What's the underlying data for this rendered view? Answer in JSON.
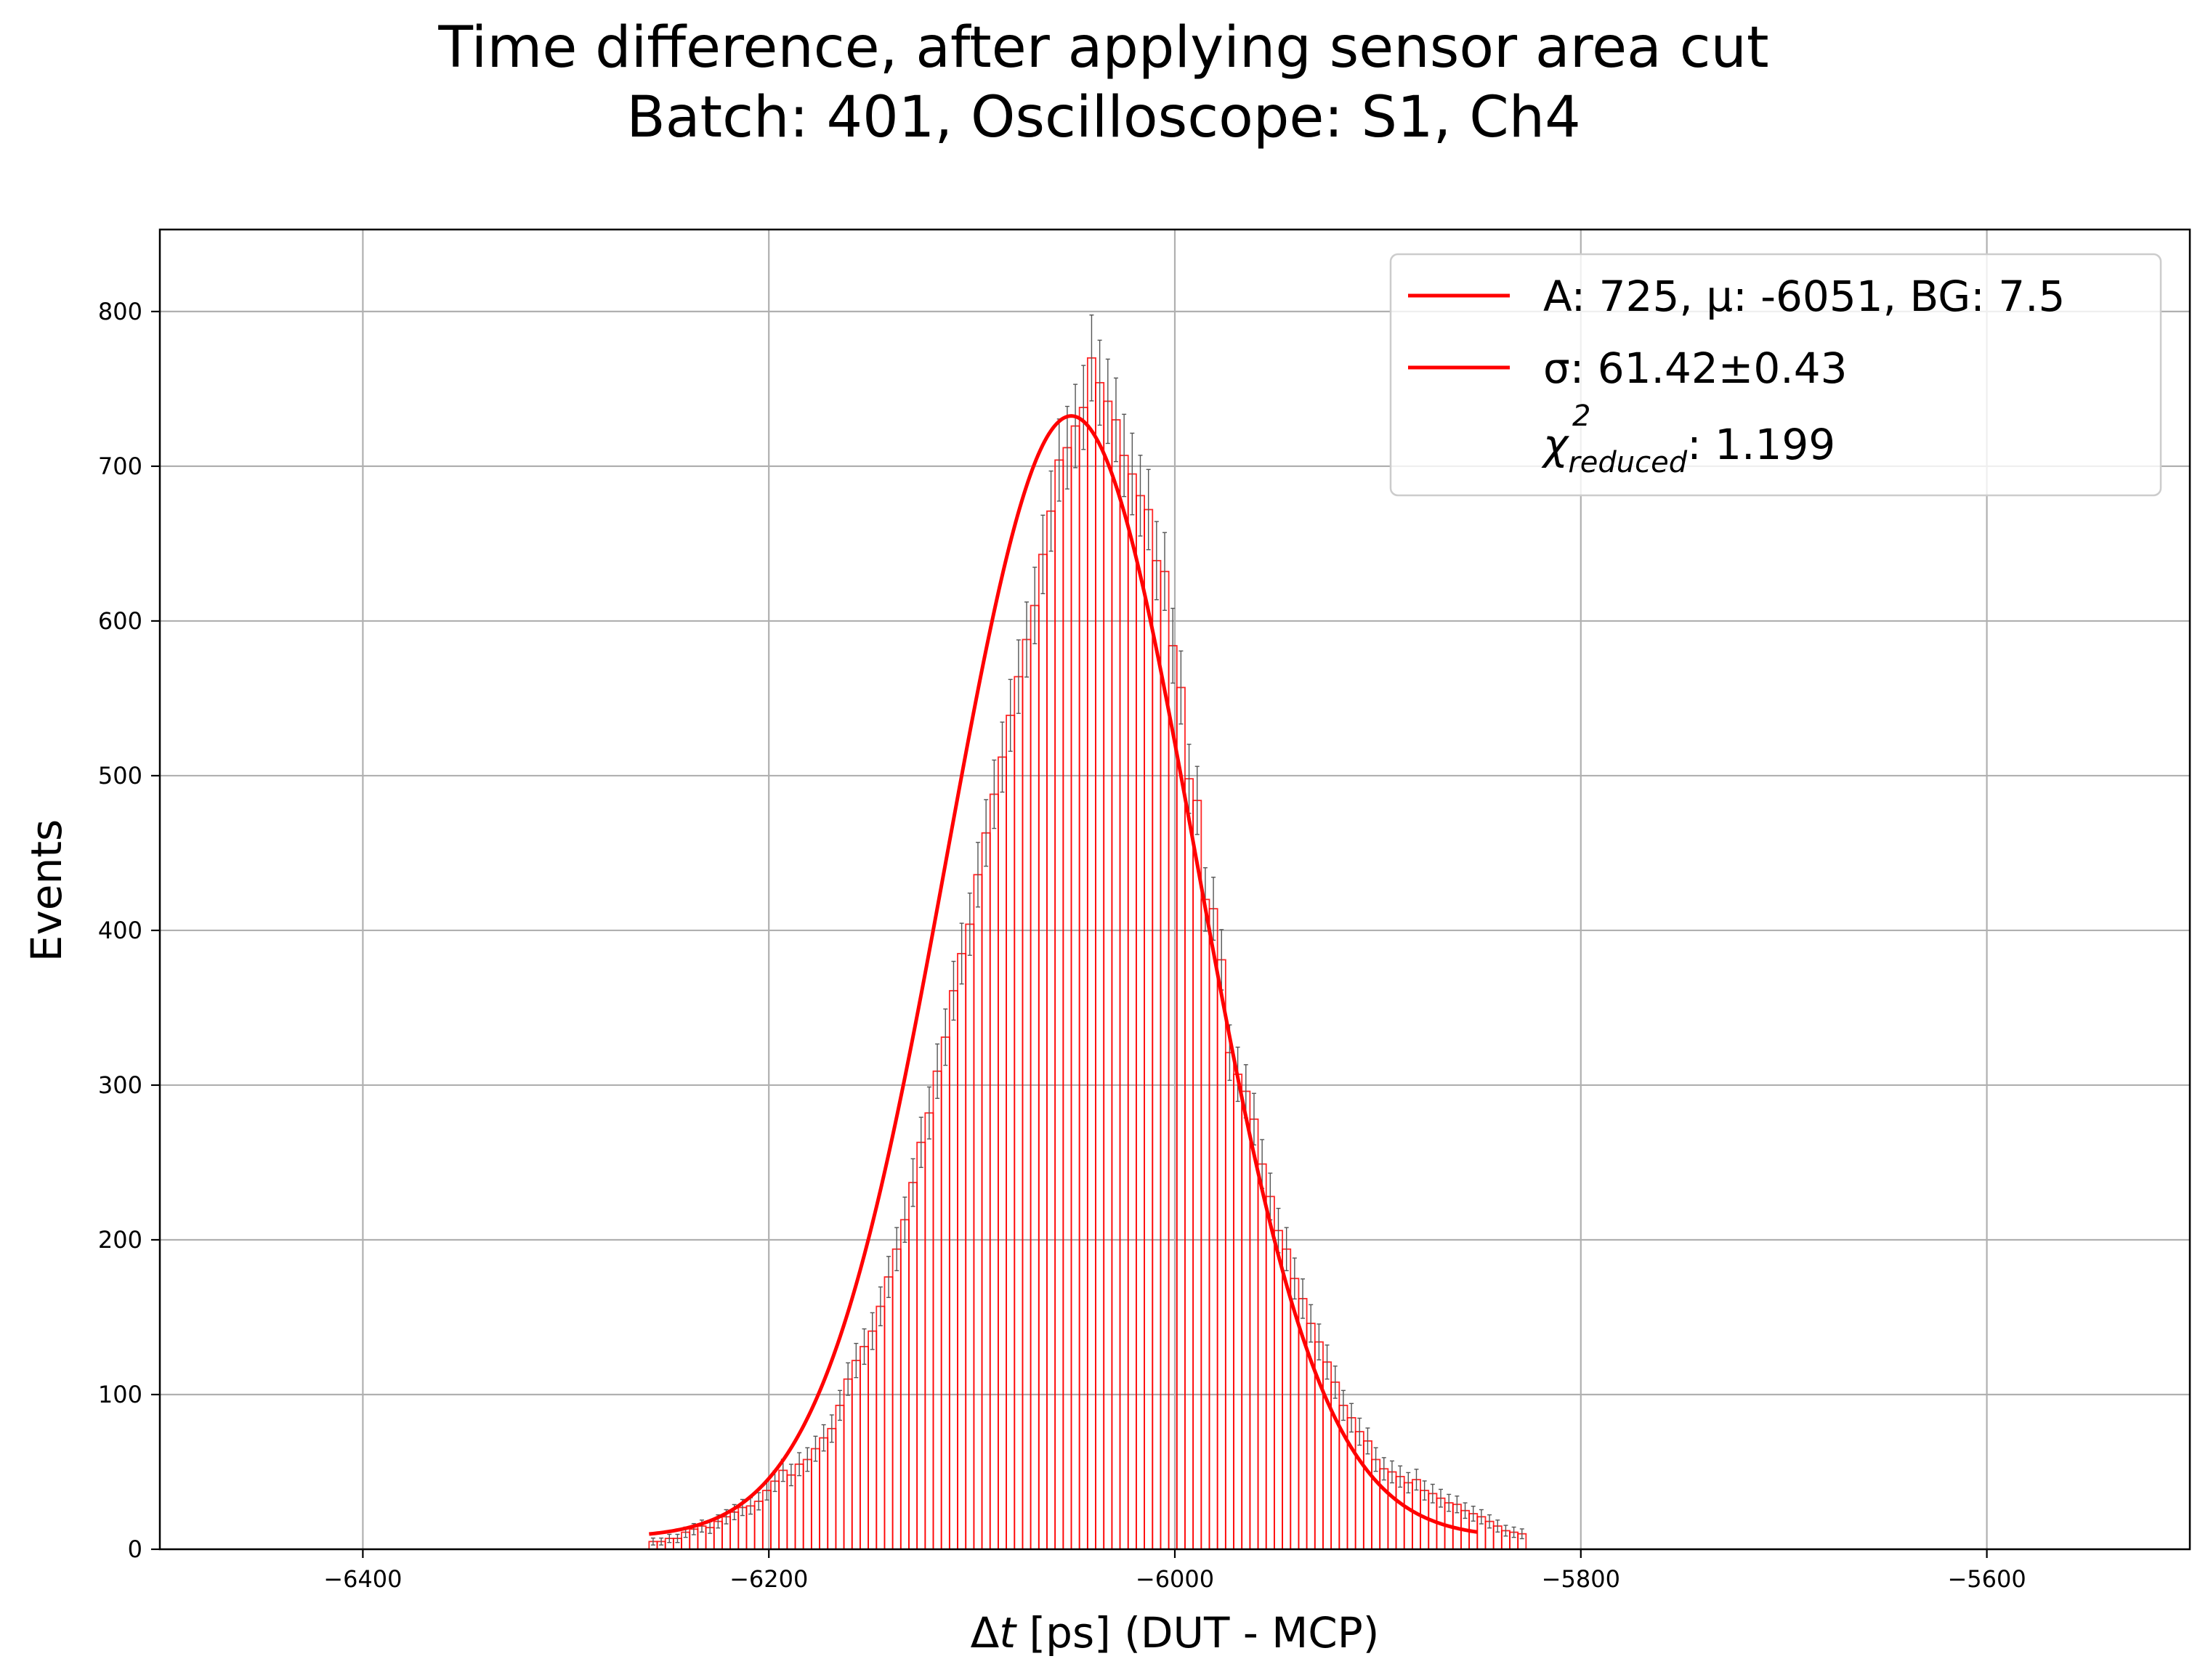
{
  "chart_data": {
    "type": "bar",
    "title_line1": "Time difference, after applying sensor area cut",
    "title_line2": "Batch: 401, Oscilloscope: S1, Ch4",
    "xlabel_delta": "Δ",
    "xlabel_t": "t",
    "xlabel_rest": " [ps] (DUT - MCP)",
    "ylabel": "Events",
    "xlim": [
      -6500,
      -5500
    ],
    "ylim": [
      0,
      853
    ],
    "xticks": [
      -6400,
      -6200,
      -6000,
      -5800,
      -5600
    ],
    "xtick_labels": [
      "−6400",
      "−6200",
      "−6000",
      "−5800",
      "−5600"
    ],
    "yticks": [
      0,
      100,
      200,
      300,
      400,
      500,
      600,
      700,
      800
    ],
    "ytick_labels": [
      "0",
      "100",
      "200",
      "300",
      "400",
      "500",
      "600",
      "700",
      "800"
    ],
    "grid": true,
    "legend_position": "top-right",
    "legend": {
      "entry1": "A: 725, μ: -6051, BG: 7.5",
      "entry2": "σ: 61.42±0.43",
      "entry3_symbol": "χ",
      "entry3_sup": "2",
      "entry3_sub": "reduced",
      "entry3_value": ":  1.199"
    },
    "histogram": {
      "bin_start": -6259,
      "bin_width": 4,
      "counts": [
        5,
        5,
        7,
        7,
        11,
        13,
        15,
        14,
        18,
        21,
        24,
        27,
        28,
        31,
        38,
        44,
        51,
        48,
        55,
        58,
        65,
        72,
        78,
        93,
        110,
        122,
        131,
        141,
        157,
        176,
        194,
        213,
        237,
        263,
        282,
        309,
        331,
        361,
        385,
        404,
        436,
        463,
        488,
        512,
        539,
        564,
        588,
        610,
        643,
        671,
        704,
        712,
        726,
        738,
        770,
        754,
        742,
        730,
        707,
        695,
        681,
        672,
        639,
        632,
        584,
        557,
        498,
        484,
        420,
        414,
        381,
        321,
        307,
        296,
        278,
        249,
        228,
        206,
        194,
        175,
        162,
        146,
        134,
        121,
        108,
        93,
        85,
        76,
        70,
        58,
        52,
        50,
        47,
        43,
        45,
        38,
        36,
        33,
        30,
        29,
        25,
        23,
        21,
        18,
        15,
        12,
        11,
        10
      ],
      "color": "#ff0000"
    },
    "fit": {
      "type": "gaussian",
      "A": 725,
      "mu": -6051,
      "sigma": 61.42,
      "background": 7.5,
      "x_range": [
        -6259,
        -5851
      ],
      "color": "#ff0000"
    },
    "errorbar_color": "#555555"
  }
}
